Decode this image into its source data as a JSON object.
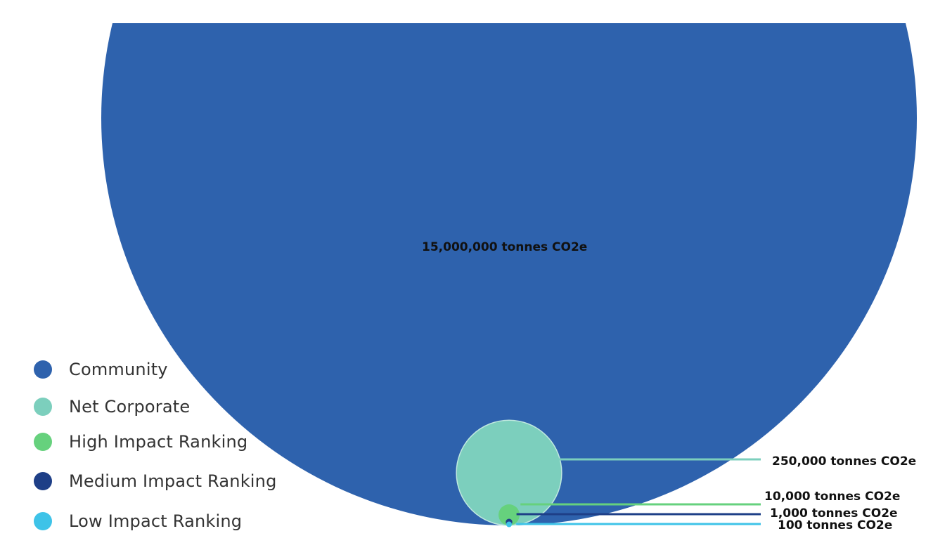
{
  "chart_data": {
    "type": "bubble",
    "title": "",
    "unit": "tonnes CO2e",
    "series": [
      {
        "name": "Community",
        "value": 15000000,
        "label": "15,000,000 tonnes CO2e",
        "color": "#2e62ad"
      },
      {
        "name": "Net Corporate",
        "value": 250000,
        "label": "250,000 tonnes CO2e",
        "color": "#7ccfbd"
      },
      {
        "name": "High Impact Ranking",
        "value": 10000,
        "label": "10,000 tonnes CO2e",
        "color": "#66d17d"
      },
      {
        "name": "Medium Impact Ranking",
        "value": 1000,
        "label": "1,000 tonnes CO2e",
        "color": "#1e3f87"
      },
      {
        "name": "Low Impact Ranking",
        "value": 100,
        "label": "100 tonnes CO2e",
        "color": "#3ec3e8"
      }
    ],
    "legend_position": "bottom-left"
  }
}
